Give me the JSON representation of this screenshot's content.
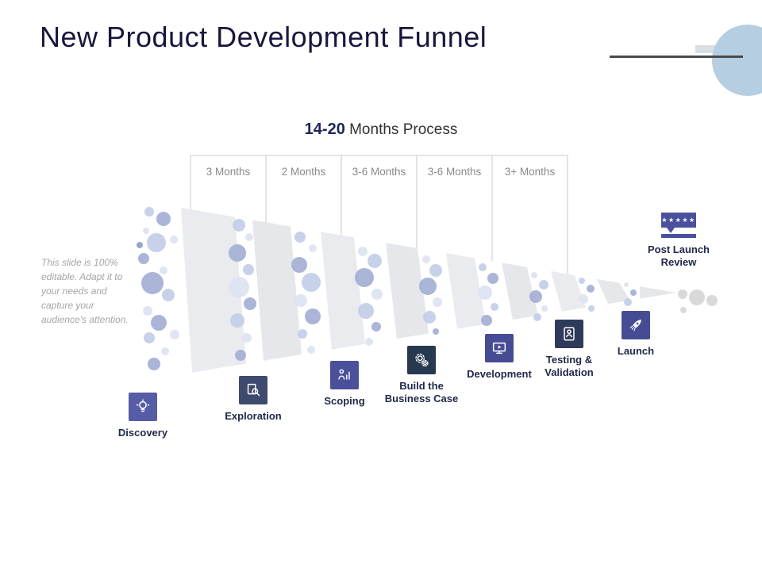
{
  "title": "New Product Development Funnel",
  "subtitle": {
    "bold": "14-20",
    "rest": " Months Process"
  },
  "editable_note": "This slide is 100% editable. Adapt it to your needs and capture your audience's attention.",
  "timeline": {
    "columns": [
      "3 Months",
      "2 Months",
      "3-6 Months",
      "3-6 Months",
      "3+ Months"
    ]
  },
  "stages": [
    {
      "label": "Discovery",
      "icon": "lightbulb-icon",
      "tile_color": "#575ca6"
    },
    {
      "label": "Exploration",
      "icon": "magnifier-document-icon",
      "tile_color": "#3e4a6e"
    },
    {
      "label": "Scoping",
      "icon": "person-chart-icon",
      "tile_color": "#4a509a"
    },
    {
      "label": "Build the\nBusiness Case",
      "icon": "gears-icon",
      "tile_color": "#263950"
    },
    {
      "label": "Development",
      "icon": "monitor-icon",
      "tile_color": "#464c94"
    },
    {
      "label": "Testing &\nValidation",
      "icon": "checklist-person-icon",
      "tile_color": "#2e3a59"
    },
    {
      "label": "Launch",
      "icon": "rocket-icon",
      "tile_color": "#464c94"
    },
    {
      "label": "Post Launch\nReview",
      "icon": "review-stars-icon",
      "tile_color": "#4a519c",
      "stars": "★★★★★"
    }
  ],
  "colors": {
    "title": "#17173d",
    "accent_circle": "#b6cee1",
    "funnel": "#e8e9ed",
    "bubble_medium": "#a3afd4",
    "bubble_light": "#dde3f2"
  }
}
